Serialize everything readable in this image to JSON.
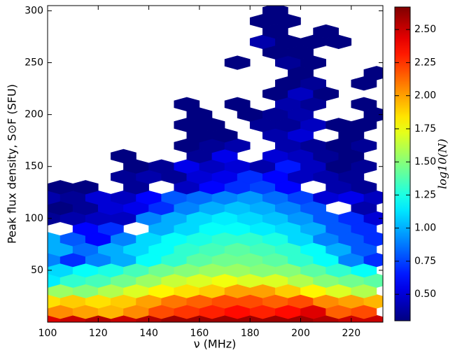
{
  "chart_data": {
    "type": "hexbin",
    "xlabel": "ν (MHz)",
    "ylabel": "Peak flux density, S⊙F (SFU)",
    "colorbar_label": "log10(N)",
    "colormap": "jet",
    "xlim": [
      100,
      232.5
    ],
    "ylim": [
      0,
      305
    ],
    "xticks": [
      100,
      120,
      140,
      160,
      180,
      200,
      220
    ],
    "yticks": [
      50,
      100,
      150,
      200,
      250,
      300
    ],
    "clim": [
      0.3,
      2.67
    ],
    "cticks": [
      {
        "value": 0.5,
        "label": "0.50"
      },
      {
        "value": 0.75,
        "label": "0.75"
      },
      {
        "value": 1.0,
        "label": "1.00"
      },
      {
        "value": 1.25,
        "label": "1.25"
      },
      {
        "value": 1.5,
        "label": "1.50"
      },
      {
        "value": 1.75,
        "label": "1.75"
      },
      {
        "value": 2.0,
        "label": "2.00"
      },
      {
        "value": 2.25,
        "label": "2.25"
      },
      {
        "value": 2.5,
        "label": "2.50"
      }
    ],
    "rows": [
      {
        "y": 0,
        "x": [
          100,
          110,
          120,
          130,
          140,
          150,
          160,
          170,
          180,
          190,
          200,
          210,
          220,
          230
        ],
        "values": [
          2.45,
          2.5,
          2.55,
          2.5,
          2.55,
          2.6,
          2.6,
          2.6,
          2.6,
          2.6,
          2.6,
          2.55,
          2.5,
          2.5
        ]
      },
      {
        "y": 10,
        "x": [
          105,
          115,
          125,
          135,
          145,
          155,
          165,
          175,
          185,
          195,
          205,
          215,
          225
        ],
        "values": [
          2.05,
          2.0,
          1.95,
          2.05,
          2.2,
          2.25,
          2.3,
          2.35,
          2.3,
          2.35,
          2.45,
          2.15,
          2.2
        ]
      },
      {
        "y": 20,
        "x": [
          100,
          110,
          120,
          130,
          140,
          150,
          160,
          170,
          180,
          190,
          200,
          210,
          220,
          230
        ],
        "values": [
          1.85,
          1.9,
          1.85,
          1.9,
          2.0,
          2.1,
          2.15,
          2.2,
          2.2,
          2.15,
          2.2,
          2.05,
          2.0,
          1.95
        ]
      },
      {
        "y": 30,
        "x": [
          105,
          115,
          125,
          135,
          145,
          155,
          165,
          175,
          185,
          195,
          205,
          215,
          225
        ],
        "values": [
          1.55,
          1.5,
          1.6,
          1.7,
          1.8,
          1.85,
          1.9,
          2.0,
          2.0,
          1.9,
          1.8,
          1.7,
          1.6
        ]
      },
      {
        "y": 40,
        "x": [
          100,
          110,
          120,
          130,
          140,
          150,
          160,
          170,
          180,
          190,
          200,
          210,
          220,
          230
        ],
        "values": [
          1.15,
          1.3,
          1.35,
          1.45,
          1.55,
          1.65,
          1.7,
          1.75,
          1.7,
          1.7,
          1.6,
          1.5,
          1.45,
          1.4
        ]
      },
      {
        "y": 50,
        "x": [
          105,
          115,
          125,
          135,
          145,
          155,
          165,
          175,
          185,
          195,
          205,
          215,
          225
        ],
        "values": [
          1.1,
          1.2,
          1.25,
          1.35,
          1.45,
          1.5,
          1.55,
          1.55,
          1.5,
          1.5,
          1.4,
          1.3,
          1.2
        ]
      },
      {
        "y": 60,
        "x": [
          100,
          110,
          120,
          130,
          140,
          150,
          160,
          170,
          180,
          190,
          200,
          210,
          220,
          230
        ],
        "values": [
          0.9,
          0.7,
          0.9,
          1.0,
          1.2,
          1.3,
          1.4,
          1.45,
          1.45,
          1.4,
          1.3,
          1.2,
          0.9,
          0.7
        ]
      },
      {
        "y": 70,
        "x": [
          105,
          115,
          125,
          135,
          145,
          155,
          165,
          175,
          185,
          195,
          205,
          215,
          225
        ],
        "values": [
          1.0,
          0.85,
          1.0,
          1.1,
          1.2,
          1.3,
          1.35,
          1.4,
          1.35,
          1.3,
          1.2,
          1.0,
          0.8
        ]
      },
      {
        "y": 80,
        "x": [
          100,
          110,
          120,
          130,
          140,
          150,
          160,
          170,
          180,
          190,
          200,
          210,
          220,
          230
        ],
        "values": [
          1.0,
          0.8,
          0.6,
          0.9,
          1.1,
          1.2,
          1.25,
          1.3,
          1.3,
          1.25,
          1.1,
          0.9,
          0.8,
          0.7
        ]
      },
      {
        "y": 90,
        "x": [
          115,
          125,
          145,
          155,
          165,
          175,
          185,
          195,
          205,
          215,
          225
        ],
        "values": [
          0.6,
          0.7,
          1.0,
          1.1,
          1.2,
          1.2,
          1.15,
          1.1,
          1.0,
          0.8,
          0.7
        ]
      },
      {
        "y": 100,
        "x": [
          100,
          110,
          120,
          130,
          140,
          150,
          160,
          170,
          180,
          190,
          200,
          210,
          220,
          230
        ],
        "values": [
          0.35,
          0.4,
          0.45,
          0.45,
          0.9,
          1.0,
          1.1,
          1.15,
          1.1,
          1.05,
          0.95,
          0.8,
          0.7,
          0.5
        ]
      },
      {
        "y": 110,
        "x": [
          105,
          115,
          125,
          135,
          145,
          155,
          165,
          175,
          185,
          195,
          205,
          225
        ],
        "values": [
          0.3,
          0.35,
          0.5,
          0.55,
          0.7,
          0.9,
          1.0,
          1.05,
          1.0,
          0.9,
          0.8,
          0.4
        ]
      },
      {
        "y": 120,
        "x": [
          100,
          110,
          120,
          130,
          140,
          150,
          160,
          170,
          180,
          190,
          200,
          210,
          220,
          230
        ],
        "values": [
          0.4,
          0.35,
          0.5,
          0.45,
          0.6,
          0.8,
          0.85,
          0.9,
          0.95,
          0.85,
          0.75,
          0.5,
          0.55,
          0.45
        ]
      },
      {
        "y": 130,
        "x": [
          105,
          115,
          135,
          155,
          165,
          175,
          185,
          195,
          215,
          225
        ],
        "values": [
          0.3,
          0.3,
          0.35,
          0.45,
          0.6,
          0.7,
          0.75,
          0.6,
          0.4,
          0.35
        ]
      },
      {
        "y": 140,
        "x": [
          130,
          140,
          150,
          160,
          170,
          180,
          190,
          200,
          210,
          220
        ],
        "values": [
          0.35,
          0.4,
          0.35,
          0.5,
          0.55,
          0.7,
          0.6,
          0.45,
          0.4,
          0.35
        ]
      },
      {
        "y": 150,
        "x": [
          135,
          145,
          155,
          165,
          175,
          185,
          195,
          205,
          215,
          225
        ],
        "values": [
          0.3,
          0.35,
          0.55,
          0.45,
          0.5,
          0.4,
          0.65,
          0.45,
          0.3,
          0.35
        ]
      },
      {
        "y": 160,
        "x": [
          130,
          160,
          170,
          190,
          200,
          210,
          220
        ],
        "values": [
          0.3,
          0.35,
          0.55,
          0.5,
          0.45,
          0.35,
          0.3
        ]
      },
      {
        "y": 170,
        "x": [
          155,
          165,
          175,
          195,
          205,
          215,
          225
        ],
        "values": [
          0.3,
          0.35,
          0.4,
          0.4,
          0.35,
          0.3,
          0.35
        ]
      },
      {
        "y": 180,
        "x": [
          160,
          170,
          190,
          200,
          220
        ],
        "values": [
          0.3,
          0.3,
          0.4,
          0.5,
          0.3
        ]
      },
      {
        "y": 190,
        "x": [
          155,
          165,
          185,
          195,
          205,
          215,
          225
        ],
        "values": [
          0.3,
          0.3,
          0.35,
          0.35,
          0.45,
          0.3,
          0.3
        ]
      },
      {
        "y": 200,
        "x": [
          160,
          180,
          190,
          200,
          230
        ],
        "values": [
          0.3,
          0.3,
          0.35,
          0.4,
          0.3
        ]
      },
      {
        "y": 210,
        "x": [
          155,
          175,
          195,
          205,
          225
        ],
        "values": [
          0.3,
          0.3,
          0.4,
          0.35,
          0.3
        ]
      },
      {
        "y": 220,
        "x": [
          190,
          200,
          210
        ],
        "values": [
          0.3,
          0.45,
          0.3
        ]
      },
      {
        "y": 230,
        "x": [
          195,
          205,
          225
        ],
        "values": [
          0.3,
          0.35,
          0.3
        ]
      },
      {
        "y": 240,
        "x": [
          200,
          230
        ],
        "values": [
          0.3,
          0.3
        ]
      },
      {
        "y": 250,
        "x": [
          175,
          195,
          205
        ],
        "values": [
          0.3,
          0.35,
          0.3
        ]
      },
      {
        "y": 260,
        "x": [
          190,
          200
        ],
        "values": [
          0.3,
          0.3
        ]
      },
      {
        "y": 270,
        "x": [
          185,
          195,
          205,
          215
        ],
        "values": [
          0.4,
          0.3,
          0.3,
          0.3
        ]
      },
      {
        "y": 280,
        "x": [
          190,
          210
        ],
        "values": [
          0.3,
          0.3
        ]
      },
      {
        "y": 290,
        "x": [
          185,
          195
        ],
        "values": [
          0.3,
          0.3
        ]
      },
      {
        "y": 300,
        "x": [
          190
        ],
        "values": [
          0.3
        ]
      }
    ]
  }
}
